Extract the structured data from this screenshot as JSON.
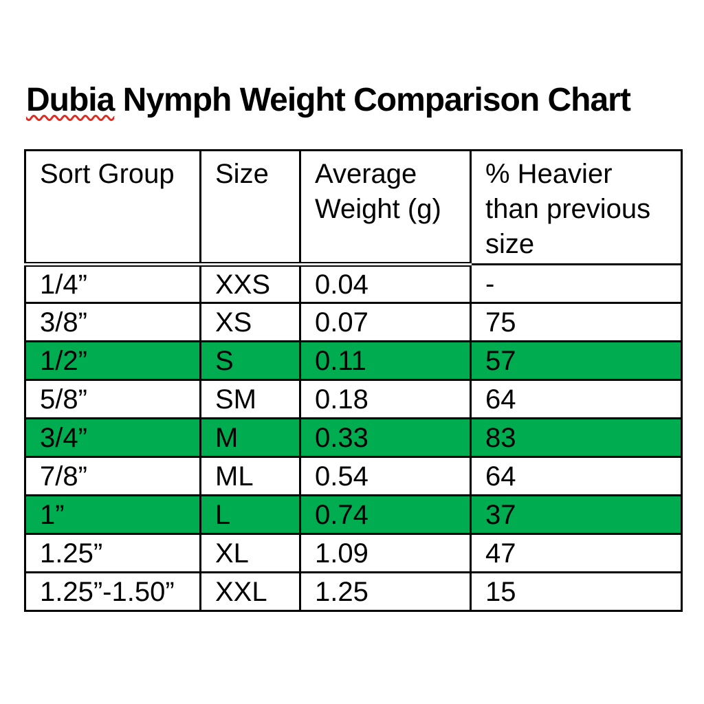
{
  "title": {
    "misspelled_word": "Dubia",
    "rest": " Nymph Weight Comparison Chart"
  },
  "colors": {
    "row_highlight": "#00AC50",
    "spellcheck_underline": "#E02B20",
    "border": "#000000",
    "background": "#FFFFFF"
  },
  "table": {
    "columns": [
      "Sort Group",
      "Size",
      "Average Weight (g)",
      "% Heavier than previous size"
    ],
    "rows": [
      [
        "1/4”",
        "XXS",
        "0.04",
        "-"
      ],
      [
        "3/8”",
        "XS",
        "0.07",
        "75"
      ],
      [
        "1/2”",
        "S",
        "0.11",
        "57"
      ],
      [
        "5/8”",
        "SM",
        "0.18",
        "64"
      ],
      [
        "3/4”",
        "M",
        "0.33",
        "83"
      ],
      [
        "7/8”",
        "ML",
        "0.54",
        "64"
      ],
      [
        "1”",
        "L",
        "0.74",
        "37"
      ],
      [
        "1.25”",
        "XL",
        "1.09",
        "47"
      ],
      [
        "1.25”-1.50”",
        "XXL",
        "1.25",
        "15"
      ]
    ],
    "highlighted_rows": [
      2,
      4,
      6
    ]
  }
}
